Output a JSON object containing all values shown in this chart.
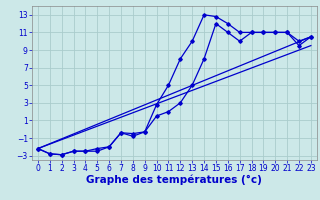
{
  "bg_color": "#cce8e8",
  "grid_color": "#aacccc",
  "line_color": "#0000cc",
  "xlabel": "Graphe des températures (°c)",
  "xlim": [
    -0.5,
    23.5
  ],
  "ylim": [
    -3.5,
    14.0
  ],
  "xtick_vals": [
    0,
    1,
    2,
    3,
    4,
    5,
    6,
    7,
    8,
    9,
    10,
    11,
    12,
    13,
    14,
    15,
    16,
    17,
    18,
    19,
    20,
    21,
    22,
    23
  ],
  "ytick_vals": [
    -3,
    -1,
    1,
    3,
    5,
    7,
    9,
    11,
    13
  ],
  "curve1_x": [
    0,
    1,
    2,
    3,
    4,
    5,
    6,
    7,
    8,
    9,
    10,
    11,
    12,
    13,
    14,
    15,
    16,
    17,
    18,
    19,
    20,
    21,
    22,
    23
  ],
  "curve1_y": [
    -2.2,
    -2.8,
    -2.9,
    -2.5,
    -2.5,
    -2.2,
    -2.0,
    -0.4,
    -0.5,
    -0.3,
    2.8,
    5.0,
    8.0,
    10.0,
    13.0,
    12.8,
    12.0,
    11.0,
    11.0,
    11.0,
    11.0,
    11.0,
    9.5,
    10.5
  ],
  "curve2_x": [
    0,
    1,
    2,
    3,
    4,
    5,
    6,
    7,
    8,
    9,
    10,
    11,
    12,
    13,
    14,
    15,
    16,
    17,
    18,
    19,
    20,
    21,
    22,
    23
  ],
  "curve2_y": [
    -2.2,
    -2.8,
    -2.9,
    -2.5,
    -2.5,
    -2.5,
    -2.0,
    -0.4,
    -0.8,
    -0.3,
    1.5,
    2.0,
    3.0,
    5.0,
    8.0,
    12.0,
    11.0,
    10.0,
    11.0,
    11.0,
    11.0,
    11.0,
    10.0,
    10.5
  ],
  "line1_x": [
    0,
    23
  ],
  "line1_y": [
    -2.2,
    10.5
  ],
  "line2_x": [
    0,
    23
  ],
  "line2_y": [
    -2.2,
    9.5
  ],
  "tick_fontsize": 5.5,
  "label_fontsize": 7.5
}
